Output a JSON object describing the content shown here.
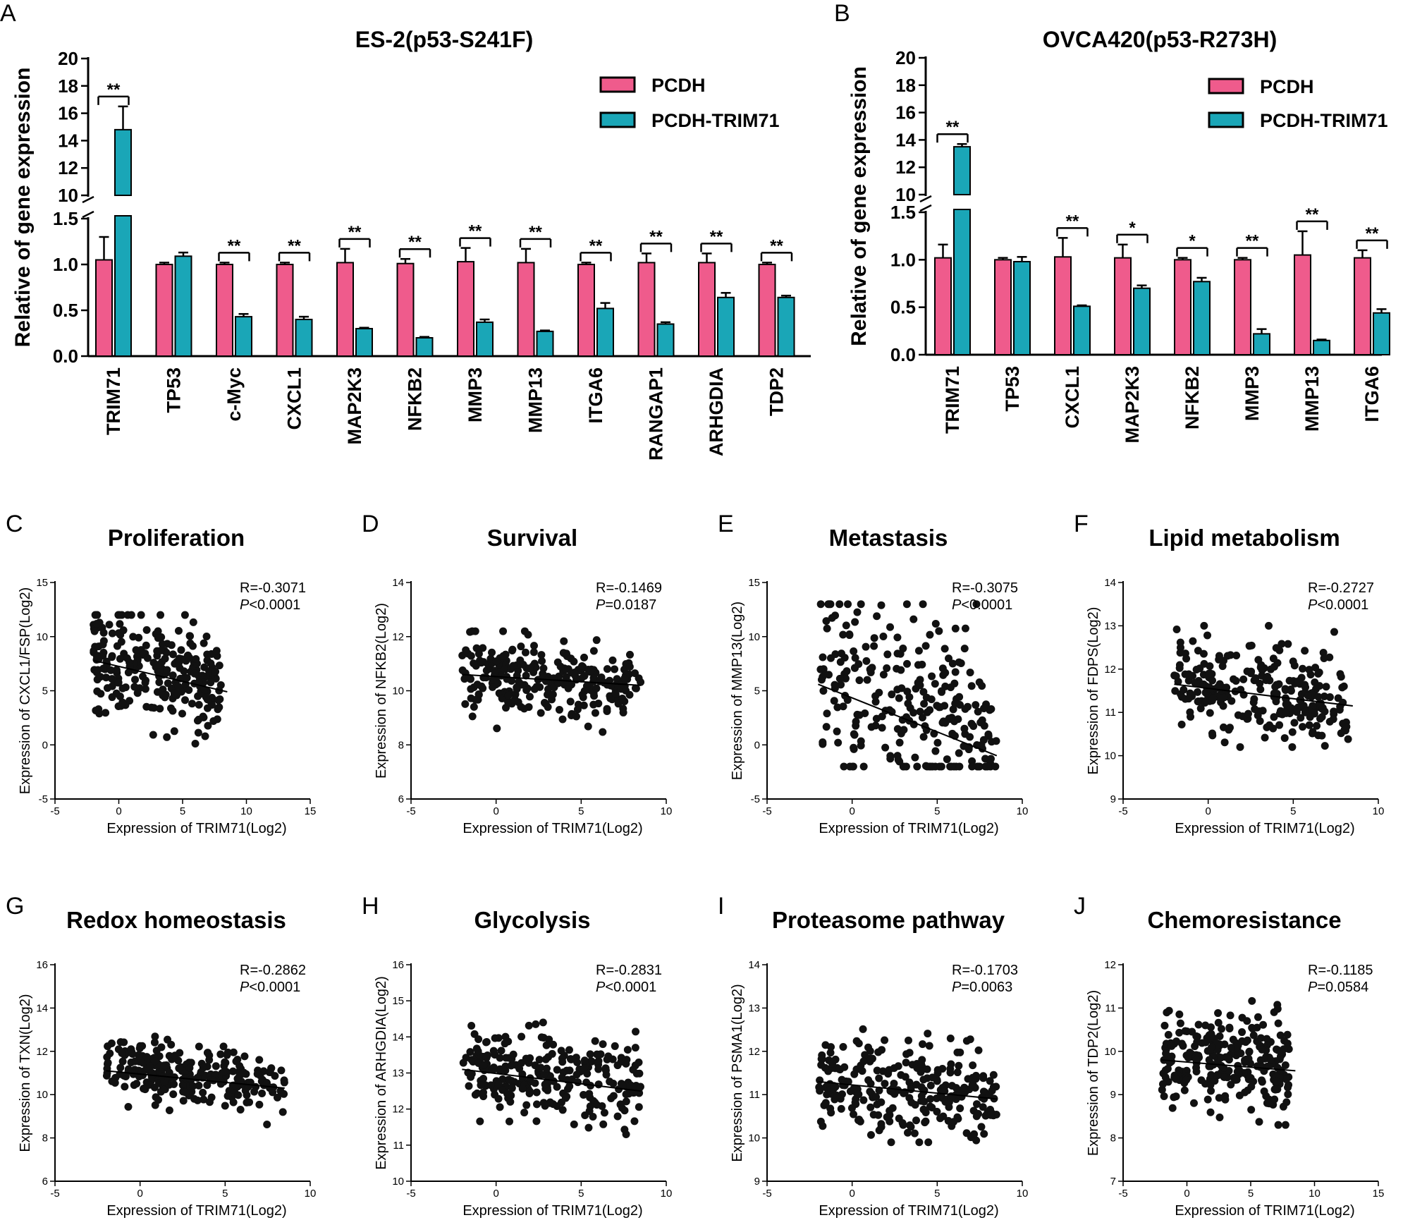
{
  "colors": {
    "pcdh": "#ef5b8c",
    "trim": "#1aa6b7",
    "ink": "#000000",
    "dot": "#111111"
  },
  "chart_data": [
    {
      "type": "bar",
      "panel": "A",
      "title": "ES-2(p53-S241F)",
      "ylabel": "Relative of gene expression",
      "broken_axis": {
        "lower_range": [
          0,
          1.5
        ],
        "upper_range": [
          10,
          20
        ]
      },
      "lower_ticks": [
        "0.0",
        "0.5",
        "1.0",
        "1.5"
      ],
      "upper_ticks": [
        "10",
        "12",
        "14",
        "16",
        "18",
        "20"
      ],
      "categories": [
        "TRIM71",
        "TP53",
        "c-Myc",
        "CXCL1",
        "MAP2K3",
        "NFKB2",
        "MMP3",
        "MMP13",
        "ITGA6",
        "RANGAP1",
        "ARHGDIA",
        "TDP2"
      ],
      "series": [
        {
          "name": "PCDH",
          "values": [
            1.05,
            1.0,
            1.0,
            1.0,
            1.02,
            1.01,
            1.03,
            1.02,
            1.0,
            1.02,
            1.02,
            1.0
          ],
          "errors": [
            0.25,
            0.02,
            0.02,
            0.02,
            0.15,
            0.05,
            0.15,
            0.15,
            0.02,
            0.1,
            0.1,
            0.02
          ]
        },
        {
          "name": "PCDH-TRIM71",
          "values": [
            14.8,
            1.09,
            0.43,
            0.4,
            0.3,
            0.2,
            0.37,
            0.27,
            0.52,
            0.35,
            0.64,
            0.64
          ],
          "errors": [
            1.7,
            0.04,
            0.03,
            0.03,
            0.01,
            0.01,
            0.03,
            0.01,
            0.06,
            0.02,
            0.05,
            0.02
          ]
        }
      ],
      "significance": [
        "**",
        "",
        "**",
        "**",
        "**",
        "**",
        "**",
        "**",
        "**",
        "**",
        "**",
        "**"
      ],
      "legend": [
        "PCDH",
        "PCDH-TRIM71"
      ]
    },
    {
      "type": "bar",
      "panel": "B",
      "title": "OVCA420(p53-R273H)",
      "ylabel": "Relative of gene expression",
      "broken_axis": {
        "lower_range": [
          0,
          1.5
        ],
        "upper_range": [
          10,
          20
        ]
      },
      "lower_ticks": [
        "0.0",
        "0.5",
        "1.0",
        "1.5"
      ],
      "upper_ticks": [
        "10",
        "12",
        "14",
        "16",
        "18",
        "20"
      ],
      "categories": [
        "TRIM71",
        "TP53",
        "CXCL1",
        "MAP2K3",
        "NFKB2",
        "MMP3",
        "MMP13",
        "ITGA6"
      ],
      "series": [
        {
          "name": "PCDH",
          "values": [
            1.02,
            1.0,
            1.03,
            1.02,
            1.0,
            1.0,
            1.05,
            1.02
          ],
          "errors": [
            0.14,
            0.02,
            0.2,
            0.14,
            0.02,
            0.02,
            0.25,
            0.08
          ]
        },
        {
          "name": "PCDH-TRIM71",
          "values": [
            13.5,
            0.98,
            0.51,
            0.7,
            0.77,
            0.22,
            0.15,
            0.44
          ],
          "errors": [
            0.2,
            0.05,
            0.01,
            0.03,
            0.04,
            0.05,
            0.01,
            0.04
          ]
        }
      ],
      "significance": [
        "**",
        "",
        "**",
        "*",
        "*",
        "**",
        "**",
        "**"
      ],
      "legend": [
        "PCDH",
        "PCDH-TRIM71"
      ]
    },
    {
      "type": "scatter",
      "panel": "C",
      "title": "Proliferation",
      "xlabel": "Expression of TRIM71(Log2)",
      "ylabel": "Expression of CXCL1/FSP(Log2)",
      "xlim": [
        -5,
        15
      ],
      "ylim": [
        -5,
        15
      ],
      "xticks": [
        -5,
        0,
        5,
        10,
        15
      ],
      "yticks": [
        -5,
        0,
        5,
        10,
        15
      ],
      "xrange": [
        -2,
        8
      ],
      "ymean": 7.3,
      "yspread": 2.5,
      "ymin_clip": 0,
      "ymax_clip": 12,
      "fit": {
        "x": [
          -2,
          8.5
        ],
        "y": [
          7.8,
          4.9
        ]
      },
      "r_text": "R=-0.3071",
      "p_label": "P",
      "p_text": "<0.0001"
    },
    {
      "type": "scatter",
      "panel": "D",
      "title": "Survival",
      "xlabel": "Expression of TRIM71(Log2)",
      "ylabel": "Expression of NFKB2(Log2)",
      "xlim": [
        -5,
        10
      ],
      "ylim": [
        6,
        14
      ],
      "xticks": [
        -5,
        0,
        5,
        10
      ],
      "yticks": [
        6,
        8,
        10,
        12,
        14
      ],
      "xrange": [
        -2,
        8.5
      ],
      "ymean": 10.4,
      "yspread": 0.7,
      "ymin_clip": 8.2,
      "ymax_clip": 12.2,
      "fit": {
        "x": [
          -2,
          8.5
        ],
        "y": [
          10.6,
          10.2
        ]
      },
      "r_text": "R=-0.1469",
      "p_label": "P",
      "p_text": "=0.0187"
    },
    {
      "type": "scatter",
      "panel": "E",
      "title": "Metastasis",
      "xlabel": "Expression of TRIM71(Log2)",
      "ylabel": "Expression of MMP13(Log2)",
      "xlim": [
        -5,
        10
      ],
      "ylim": [
        -5,
        15
      ],
      "xticks": [
        -5,
        0,
        5,
        10
      ],
      "yticks": [
        -5,
        0,
        5,
        10,
        15
      ],
      "xrange": [
        -2,
        8.5
      ],
      "ymean": 3.5,
      "yspread": 4.0,
      "ymin_clip": -2,
      "ymax_clip": 13,
      "fit": {
        "x": [
          -2,
          8.5
        ],
        "y": [
          5.6,
          -1.0
        ]
      },
      "r_text": "R=-0.3075",
      "p_label": "P",
      "p_text": "<0.0001"
    },
    {
      "type": "scatter",
      "panel": "F",
      "title": "Lipid metabolism",
      "xlabel": "Expression of TRIM71(Log2)",
      "ylabel": "Expression of FDPS(Log2)",
      "xlim": [
        -5,
        10
      ],
      "ylim": [
        9,
        14
      ],
      "xticks": [
        -5,
        0,
        5,
        10
      ],
      "yticks": [
        9,
        10,
        11,
        12,
        13,
        14
      ],
      "xrange": [
        -2,
        8.5
      ],
      "ymean": 11.45,
      "yspread": 0.55,
      "ymin_clip": 10.2,
      "ymax_clip": 13.0,
      "fit": {
        "x": [
          -2,
          8.5
        ],
        "y": [
          11.65,
          11.15
        ]
      },
      "r_text": "R=-0.2727",
      "p_label": "P",
      "p_text": "<0.0001"
    },
    {
      "type": "scatter",
      "panel": "G",
      "title": "Redox homeostasis",
      "xlabel": "Expression of TRIM71(Log2)",
      "ylabel": "Expression of TXN(Log2)",
      "xlim": [
        -5,
        10
      ],
      "ylim": [
        6,
        16
      ],
      "xticks": [
        -5,
        0,
        5,
        10
      ],
      "yticks": [
        6,
        8,
        10,
        12,
        14,
        16
      ],
      "xrange": [
        -2,
        8.5
      ],
      "ymean": 10.9,
      "yspread": 0.7,
      "ymin_clip": 8.3,
      "ymax_clip": 14.0,
      "fit": {
        "x": [
          -2,
          8.5
        ],
        "y": [
          11.1,
          10.3
        ]
      },
      "r_text": "R=-0.2862",
      "p_label": "P",
      "p_text": "<0.0001"
    },
    {
      "type": "scatter",
      "panel": "H",
      "title": "Glycolysis",
      "xlabel": "Expression of TRIM71(Log2)",
      "ylabel": "Expression of ARHGDIA(Log2)",
      "xlim": [
        -5,
        10
      ],
      "ylim": [
        10,
        16
      ],
      "xticks": [
        -5,
        0,
        5,
        10
      ],
      "yticks": [
        10,
        11,
        12,
        13,
        14,
        15,
        16
      ],
      "xrange": [
        -2,
        8.5
      ],
      "ymean": 12.9,
      "yspread": 0.55,
      "ymin_clip": 11.3,
      "ymax_clip": 14.4,
      "fit": {
        "x": [
          -2,
          8.5
        ],
        "y": [
          13.1,
          12.5
        ]
      },
      "r_text": "R=-0.2831",
      "p_label": "P",
      "p_text": "<0.0001"
    },
    {
      "type": "scatter",
      "panel": "I",
      "title": "Proteasome pathway",
      "xlabel": "Expression of TRIM71(Log2)",
      "ylabel": "Expression of PSMA1(Log2)",
      "xlim": [
        -5,
        10
      ],
      "ylim": [
        9,
        14
      ],
      "xticks": [
        -5,
        0,
        5,
        10
      ],
      "yticks": [
        9,
        10,
        11,
        12,
        13,
        14
      ],
      "xrange": [
        -2,
        8.5
      ],
      "ymean": 11.1,
      "yspread": 0.55,
      "ymin_clip": 9.9,
      "ymax_clip": 12.9,
      "fit": {
        "x": [
          -2,
          8.5
        ],
        "y": [
          11.3,
          10.9
        ]
      },
      "r_text": "R=-0.1703",
      "p_label": "P",
      "p_text": "=0.0063"
    },
    {
      "type": "scatter",
      "panel": "J",
      "title": "Chemoresistance",
      "xlabel": "Expression of TRIM71(Log2)",
      "ylabel": "Expression of TDP2(Log2)",
      "xlim": [
        -5,
        15
      ],
      "ylim": [
        7,
        12
      ],
      "xticks": [
        -5,
        0,
        5,
        10,
        15
      ],
      "yticks": [
        7,
        8,
        9,
        10,
        11,
        12
      ],
      "xrange": [
        -2,
        8
      ],
      "ymean": 9.75,
      "yspread": 0.55,
      "ymin_clip": 8.3,
      "ymax_clip": 11.2,
      "fit": {
        "x": [
          -2,
          8.5
        ],
        "y": [
          9.8,
          9.55
        ]
      },
      "r_text": "R=-0.1185",
      "p_label": "P",
      "p_text": "=0.0584"
    }
  ]
}
